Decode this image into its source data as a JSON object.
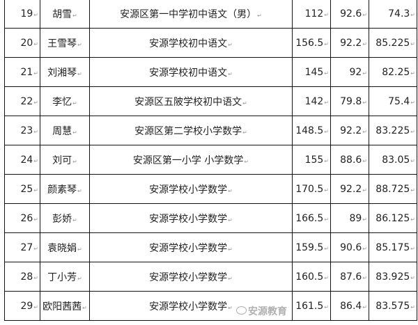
{
  "rows": [
    {
      "no": "19",
      "name": "胡雪",
      "school": "安源区第一中学初中语文（男）",
      "written": "112",
      "interview": "92.6",
      "total": "74.3"
    },
    {
      "no": "20",
      "name": "王雪琴",
      "school": "安源学校初中语文",
      "written": "156.5",
      "interview": "92.2",
      "total": "85.225"
    },
    {
      "no": "21",
      "name": "刘湘琴",
      "school": "安源学校初中语文",
      "written": "145",
      "interview": "92",
      "total": "82.25"
    },
    {
      "no": "22",
      "name": "李忆",
      "school": "安源区五陂学校初中语文",
      "written": "142",
      "interview": "79.8",
      "total": "75.4"
    },
    {
      "no": "23",
      "name": "周慧",
      "school": "安源区第二学校小学数学",
      "written": "148.5",
      "interview": "92.2",
      "total": "83.225"
    },
    {
      "no": "24",
      "name": "刘可",
      "school": "安源区第一小学 小学数学",
      "written": "155",
      "interview": "88.6",
      "total": "83.05"
    },
    {
      "no": "25",
      "name": "颜素琴",
      "school": "安源学校小学数学",
      "written": "170.5",
      "interview": "92.2",
      "total": "88.725"
    },
    {
      "no": "26",
      "name": "彭娇",
      "school": "安源学校小学数学",
      "written": "166.5",
      "interview": "89",
      "total": "86.125"
    },
    {
      "no": "27",
      "name": "袁晓娟",
      "school": "安源学校小学数学",
      "written": "159.5",
      "interview": "90.6",
      "total": "85.175"
    },
    {
      "no": "28",
      "name": "丁小芳",
      "school": "安源学校小学数学",
      "written": "160.5",
      "interview": "87.6",
      "total": "83.925"
    },
    {
      "no": "29",
      "name": "欧阳茜茜",
      "school": "安源学校小学数学",
      "written": "161.5",
      "interview": "86.4",
      "total": "83.575"
    }
  ],
  "watermark": {
    "text": "安源教育",
    "icon": "wechat-icon"
  }
}
